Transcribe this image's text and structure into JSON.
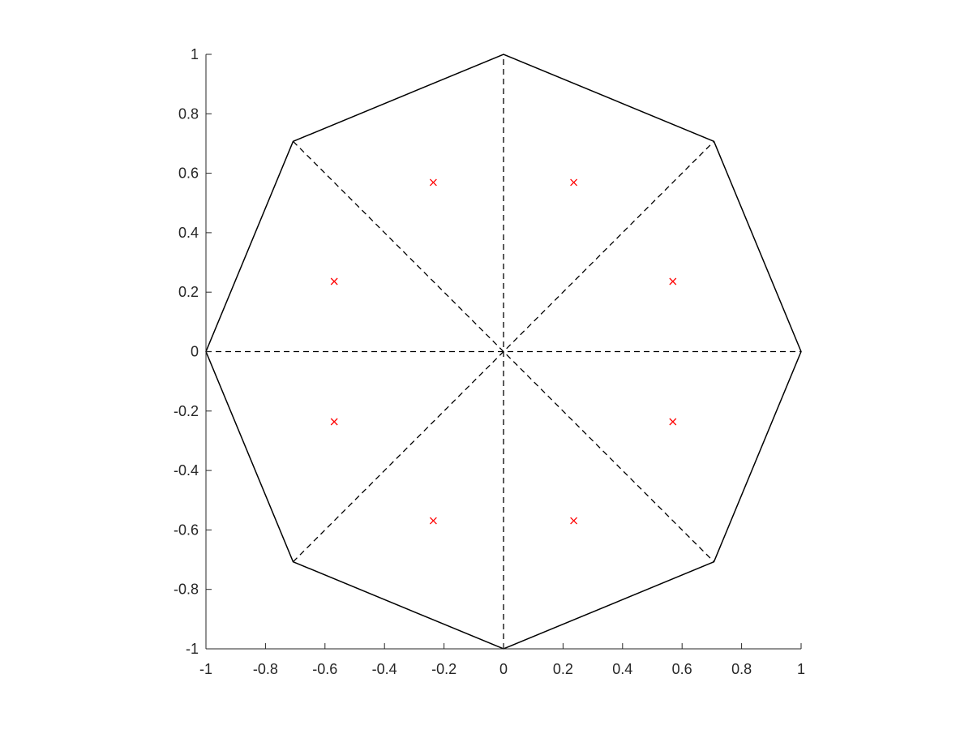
{
  "chart_data": {
    "type": "scatter",
    "title": "",
    "xlabel": "",
    "ylabel": "",
    "xlim": [
      -1,
      1
    ],
    "ylim": [
      -1,
      1
    ],
    "grid": false,
    "legend": "none",
    "aspect": "equal",
    "xticks": [
      -1,
      -0.8,
      -0.6,
      -0.4,
      -0.2,
      0,
      0.2,
      0.4,
      0.6,
      0.8,
      1
    ],
    "yticks": [
      -1,
      -0.8,
      -0.6,
      -0.4,
      -0.2,
      0,
      0.2,
      0.4,
      0.6,
      0.8,
      1
    ],
    "xtick_labels": [
      "-1",
      "-0.8",
      "-0.6",
      "-0.4",
      "-0.2",
      "0",
      "0.2",
      "0.4",
      "0.6",
      "0.8",
      "1"
    ],
    "ytick_labels": [
      "-1",
      "-0.8",
      "-0.6",
      "-0.4",
      "-0.2",
      "0",
      "0.2",
      "0.4",
      "0.6",
      "0.8",
      "1"
    ],
    "octagon_vertices": [
      [
        1,
        0
      ],
      [
        0.7071,
        0.7071
      ],
      [
        0,
        1
      ],
      [
        -0.7071,
        0.7071
      ],
      [
        -1,
        0
      ],
      [
        -0.7071,
        -0.7071
      ],
      [
        0,
        -1
      ],
      [
        0.7071,
        -0.7071
      ]
    ],
    "spokes": [
      [
        [
          -1,
          0
        ],
        [
          1,
          0
        ]
      ],
      [
        [
          0,
          -1
        ],
        [
          0,
          1
        ]
      ],
      [
        [
          -0.7071,
          0.7071
        ],
        [
          0.7071,
          -0.7071
        ]
      ],
      [
        [
          -0.7071,
          -0.7071
        ],
        [
          0.7071,
          0.7071
        ]
      ]
    ],
    "points": [
      [
        0.569,
        0.236
      ],
      [
        0.236,
        0.569
      ],
      [
        -0.236,
        0.569
      ],
      [
        -0.569,
        0.236
      ],
      [
        -0.569,
        -0.236
      ],
      [
        -0.236,
        -0.569
      ],
      [
        0.236,
        -0.569
      ],
      [
        0.569,
        -0.236
      ]
    ],
    "colors": {
      "outline": "#000000",
      "spokes": "#000000",
      "points": "#ff0000",
      "axis": "#262626"
    },
    "marker": "x"
  }
}
